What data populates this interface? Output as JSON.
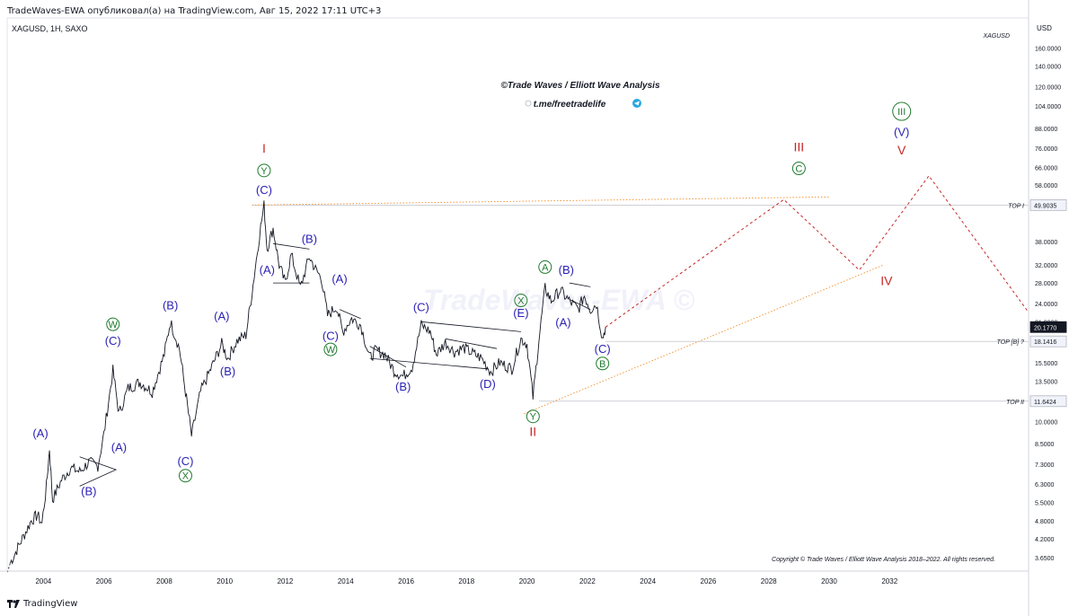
{
  "header": {
    "publisher": "TradeWaves-EWA опубликовал(а) на TradingView.com, Авг 15, 2022 17:11 UTC+3",
    "symbol": "XAGUSD, 1H, SAXO",
    "currency": "USD",
    "symbol_watermark": "XAGUSD"
  },
  "branding": {
    "title": "©Trade Waves / Elliott Wave Analysis",
    "telegram": "t.me/freetradelife",
    "watermark": "TradeWaves-EWA ©",
    "copyright": "Copyright © Trade Waves / Elliott Wave Analysis 2018–2022. All rights reserved.",
    "footer": "TradingView",
    "colors": {
      "blue": "#2b22b4",
      "green": "#1f7a2e",
      "red": "#c62828",
      "orange": "#f28c28",
      "candle": "#131722",
      "axis_text": "#131722"
    }
  },
  "chart_data": {
    "type": "line",
    "scale": "log",
    "price_axis": {
      "unit": "USD",
      "ticks": [
        "160.0000",
        "140.0000",
        "120.0000",
        "104.0000",
        "88.0000",
        "76.0000",
        "66.0000",
        "58.0000",
        "49.9035",
        "38.0000",
        "32.0000",
        "28.0000",
        "24.0000",
        "21.0000",
        "20.1770",
        "18.1416",
        "15.5000",
        "13.5000",
        "11.6424",
        "10.0000",
        "8.5000",
        "7.3000",
        "6.3000",
        "5.5000",
        "4.8000",
        "4.2000",
        "3.6500"
      ],
      "range": [
        3.3,
        200
      ]
    },
    "time_axis": {
      "ticks": [
        "2004",
        "2006",
        "2008",
        "2010",
        "2012",
        "2014",
        "2016",
        "2018",
        "2020",
        "2022",
        "2024",
        "2026",
        "2028",
        "2030",
        "2032"
      ],
      "range": [
        2002.8,
        2036.6
      ]
    },
    "price_labels": [
      {
        "value": 49.9035,
        "text": "49.9035",
        "style": "box"
      },
      {
        "value": 20.177,
        "text": "20.1770",
        "style": "current"
      },
      {
        "value": 18.1416,
        "text": "18.1416",
        "style": "box"
      },
      {
        "value": 11.6424,
        "text": "11.6424",
        "style": "box"
      }
    ],
    "levels": [
      {
        "name": "TOP I",
        "value": 49.9035,
        "from": 2010.9
      },
      {
        "name": "TOP [B] ?",
        "value": 18.1416,
        "from": 2022.6
      },
      {
        "name": "TOP II",
        "value": 11.6424,
        "from": 2020.4
      }
    ],
    "price_path": [
      [
        2002.9,
        3.5
      ],
      [
        2003.3,
        4.2
      ],
      [
        2003.6,
        4.8
      ],
      [
        2003.8,
        5.0
      ],
      [
        2003.95,
        4.7
      ],
      [
        2004.1,
        6.2
      ],
      [
        2004.2,
        8.2
      ],
      [
        2004.3,
        5.6
      ],
      [
        2004.6,
        6.5
      ],
      [
        2004.9,
        7.1
      ],
      [
        2005.2,
        6.9
      ],
      [
        2005.5,
        7.4
      ],
      [
        2005.8,
        7.2
      ],
      [
        2006.0,
        9.1
      ],
      [
        2006.3,
        14.6
      ],
      [
        2006.5,
        10.6
      ],
      [
        2006.8,
        12.8
      ],
      [
        2007.2,
        13.4
      ],
      [
        2007.6,
        12.5
      ],
      [
        2008.0,
        16.5
      ],
      [
        2008.2,
        21.0
      ],
      [
        2008.5,
        17.2
      ],
      [
        2008.7,
        12.5
      ],
      [
        2008.9,
        9.0
      ],
      [
        2009.2,
        12.5
      ],
      [
        2009.5,
        14.5
      ],
      [
        2009.9,
        17.8
      ],
      [
        2010.1,
        16.0
      ],
      [
        2010.4,
        18.2
      ],
      [
        2010.7,
        19.0
      ],
      [
        2010.9,
        26.0
      ],
      [
        2011.15,
        40.0
      ],
      [
        2011.3,
        49.8
      ],
      [
        2011.4,
        36.0
      ],
      [
        2011.6,
        42.0
      ],
      [
        2011.8,
        32.0
      ],
      [
        2012.0,
        28.0
      ],
      [
        2012.2,
        34.5
      ],
      [
        2012.5,
        27.0
      ],
      [
        2012.8,
        34.0
      ],
      [
        2013.0,
        31.0
      ],
      [
        2013.2,
        29.0
      ],
      [
        2013.4,
        22.0
      ],
      [
        2013.7,
        23.5
      ],
      [
        2013.9,
        19.5
      ],
      [
        2014.2,
        21.5
      ],
      [
        2014.5,
        20.5
      ],
      [
        2014.8,
        16.0
      ],
      [
        2015.0,
        17.0
      ],
      [
        2015.3,
        16.5
      ],
      [
        2015.6,
        14.6
      ],
      [
        2015.9,
        14.0
      ],
      [
        2016.2,
        15.0
      ],
      [
        2016.5,
        20.5
      ],
      [
        2016.8,
        19.5
      ],
      [
        2017.0,
        16.5
      ],
      [
        2017.3,
        18.0
      ],
      [
        2017.6,
        16.8
      ],
      [
        2017.9,
        17.3
      ],
      [
        2018.2,
        16.6
      ],
      [
        2018.5,
        16.0
      ],
      [
        2018.8,
        14.5
      ],
      [
        2019.1,
        15.5
      ],
      [
        2019.5,
        14.8
      ],
      [
        2019.8,
        18.5
      ],
      [
        2020.0,
        17.8
      ],
      [
        2020.2,
        12.0
      ],
      [
        2020.4,
        18.5
      ],
      [
        2020.6,
        27.0
      ],
      [
        2020.8,
        24.5
      ],
      [
        2021.1,
        26.5
      ],
      [
        2021.4,
        24.5
      ],
      [
        2021.7,
        23.0
      ],
      [
        2021.9,
        25.5
      ],
      [
        2022.1,
        23.0
      ],
      [
        2022.3,
        24.0
      ],
      [
        2022.5,
        18.5
      ],
      [
        2022.6,
        20.2
      ]
    ],
    "projection": [
      [
        2022.6,
        20.177
      ],
      [
        2028.5,
        52.0
      ],
      [
        2031.0,
        30.8
      ],
      [
        2033.3,
        62.0
      ],
      [
        2036.6,
        22.5
      ]
    ],
    "trendlines": [
      {
        "from": [
          2010.9,
          49.9
        ],
        "to": [
          2030.0,
          53.0
        ],
        "style": "dotted",
        "color": "orange"
      },
      {
        "from": [
          2019.9,
          10.6
        ],
        "to": [
          2031.8,
          32.0
        ],
        "style": "dotted",
        "color": "orange"
      }
    ],
    "wave_labels": [
      {
        "text": "I",
        "x": 2011.3,
        "y": 76.0,
        "color": "red"
      },
      {
        "text": "Y",
        "x": 2011.3,
        "y": 64.5,
        "color": "green",
        "circle": true
      },
      {
        "text": "(C)",
        "x": 2011.3,
        "y": 56.0,
        "color": "blue"
      },
      {
        "text": "(A)",
        "x": 2011.4,
        "y": 31.0,
        "color": "blue"
      },
      {
        "text": "(B)",
        "x": 2012.8,
        "y": 39.0,
        "color": "blue"
      },
      {
        "text": "(A)",
        "x": 2013.8,
        "y": 29.0,
        "color": "blue"
      },
      {
        "text": "(C)",
        "x": 2013.5,
        "y": 19.0,
        "color": "blue"
      },
      {
        "text": "W",
        "x": 2013.5,
        "y": 17.1,
        "color": "green",
        "circle": true
      },
      {
        "text": "(B)",
        "x": 2015.9,
        "y": 13.0,
        "color": "blue"
      },
      {
        "text": "(C)",
        "x": 2016.5,
        "y": 23.5,
        "color": "blue"
      },
      {
        "text": "(D)",
        "x": 2018.7,
        "y": 13.3,
        "color": "blue"
      },
      {
        "text": "(E)",
        "x": 2019.8,
        "y": 22.5,
        "color": "blue"
      },
      {
        "text": "X",
        "x": 2019.8,
        "y": 24.6,
        "color": "green",
        "circle": true
      },
      {
        "text": "Y",
        "x": 2020.2,
        "y": 10.4,
        "color": "green",
        "circle": true
      },
      {
        "text": "II",
        "x": 2020.2,
        "y": 9.3,
        "color": "red"
      },
      {
        "text": "A",
        "x": 2020.6,
        "y": 31.5,
        "color": "green",
        "circle": true
      },
      {
        "text": "(B)",
        "x": 2021.3,
        "y": 31.0,
        "color": "blue"
      },
      {
        "text": "(A)",
        "x": 2021.2,
        "y": 21.0,
        "color": "blue"
      },
      {
        "text": "(C)",
        "x": 2022.5,
        "y": 17.2,
        "color": "blue"
      },
      {
        "text": "B",
        "x": 2022.5,
        "y": 15.4,
        "color": "green",
        "circle": true
      },
      {
        "text": "(A)",
        "x": 2003.9,
        "y": 9.2,
        "color": "blue"
      },
      {
        "text": "(B)",
        "x": 2005.5,
        "y": 6.0,
        "color": "blue"
      },
      {
        "text": "(A)",
        "x": 2006.5,
        "y": 8.3,
        "color": "blue"
      },
      {
        "text": "W",
        "x": 2006.3,
        "y": 20.6,
        "color": "green",
        "circle": true
      },
      {
        "text": "(C)",
        "x": 2006.3,
        "y": 18.3,
        "color": "blue"
      },
      {
        "text": "(B)",
        "x": 2008.2,
        "y": 23.8,
        "color": "blue"
      },
      {
        "text": "(A)",
        "x": 2009.9,
        "y": 22.0,
        "color": "blue"
      },
      {
        "text": "(B)",
        "x": 2010.1,
        "y": 14.6,
        "color": "blue"
      },
      {
        "text": "(C)",
        "x": 2008.7,
        "y": 7.5,
        "color": "blue"
      },
      {
        "text": "X",
        "x": 2008.7,
        "y": 6.7,
        "color": "green",
        "circle": true
      },
      {
        "text": "III",
        "x": 2029.0,
        "y": 77.0,
        "color": "red"
      },
      {
        "text": "C",
        "x": 2029.0,
        "y": 65.5,
        "color": "green",
        "circle": true
      },
      {
        "text": "III",
        "x": 2032.4,
        "y": 100.0,
        "color": "green",
        "circle": true
      },
      {
        "text": "(V)",
        "x": 2032.4,
        "y": 86.0,
        "color": "blue"
      },
      {
        "text": "V",
        "x": 2032.4,
        "y": 75.0,
        "color": "red"
      },
      {
        "text": "IV",
        "x": 2031.9,
        "y": 28.5,
        "color": "red"
      }
    ],
    "patterns": [
      {
        "points": [
          [
            2005.2,
            7.7
          ],
          [
            2006.4,
            7.0
          ],
          [
            2005.2,
            6.2
          ]
        ],
        "note": "triangle"
      },
      {
        "points": [
          [
            2011.6,
            37.5
          ],
          [
            2012.8,
            36.0
          ]
        ]
      },
      {
        "points": [
          [
            2011.6,
            28.0
          ],
          [
            2012.8,
            28.0
          ]
        ]
      },
      {
        "points": [
          [
            2013.8,
            23.0
          ],
          [
            2014.5,
            21.5
          ]
        ]
      },
      {
        "points": [
          [
            2014.8,
            17.5
          ],
          [
            2016.0,
            15.0
          ]
        ]
      },
      {
        "points": [
          [
            2014.8,
            16.0
          ],
          [
            2018.7,
            14.8
          ]
        ]
      },
      {
        "points": [
          [
            2016.5,
            21.0
          ],
          [
            2019.8,
            19.5
          ]
        ]
      },
      {
        "points": [
          [
            2017.3,
            18.5
          ],
          [
            2019.0,
            17.2
          ]
        ]
      },
      {
        "points": [
          [
            2021.4,
            28.0
          ],
          [
            2022.1,
            27.2
          ]
        ]
      },
      {
        "points": [
          [
            2021.4,
            24.8
          ],
          [
            2022.1,
            23.0
          ]
        ]
      }
    ]
  }
}
